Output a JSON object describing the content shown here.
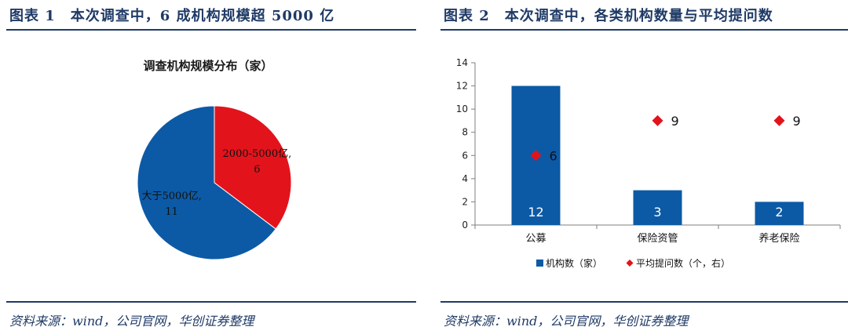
{
  "figure1": {
    "title": "图表 1　本次调查中，6 成机构规模超 5000 亿",
    "source": "资料来源：wind，公司官网，华创证券整理"
  },
  "figure2": {
    "title": "图表 2　本次调查中，各类机构数量与平均提问数",
    "source": "资料来源：wind，公司官网，华创证券整理"
  },
  "chart_data": [
    {
      "type": "pie",
      "title": "调查机构规模分布（家）",
      "slices": [
        {
          "label": "2000-5000亿,",
          "value": 6,
          "color": "#e3131c"
        },
        {
          "label": "大于5000亿,",
          "value": 11,
          "color": "#0c5aa6"
        }
      ]
    },
    {
      "type": "bar",
      "categories": [
        "公募",
        "保险资管",
        "养老保险"
      ],
      "series": [
        {
          "name": "机构数（家）",
          "type": "bar",
          "values": [
            12,
            3,
            2
          ],
          "color": "#0c5aa6"
        },
        {
          "name": "平均提问数（个，右）",
          "type": "scatter",
          "values": [
            6,
            9,
            9
          ],
          "color": "#e3131c"
        }
      ],
      "ylim": [
        0,
        14
      ],
      "yticks": [
        0,
        2,
        4,
        6,
        8,
        10,
        12,
        14
      ],
      "legend_position": "bottom"
    }
  ]
}
